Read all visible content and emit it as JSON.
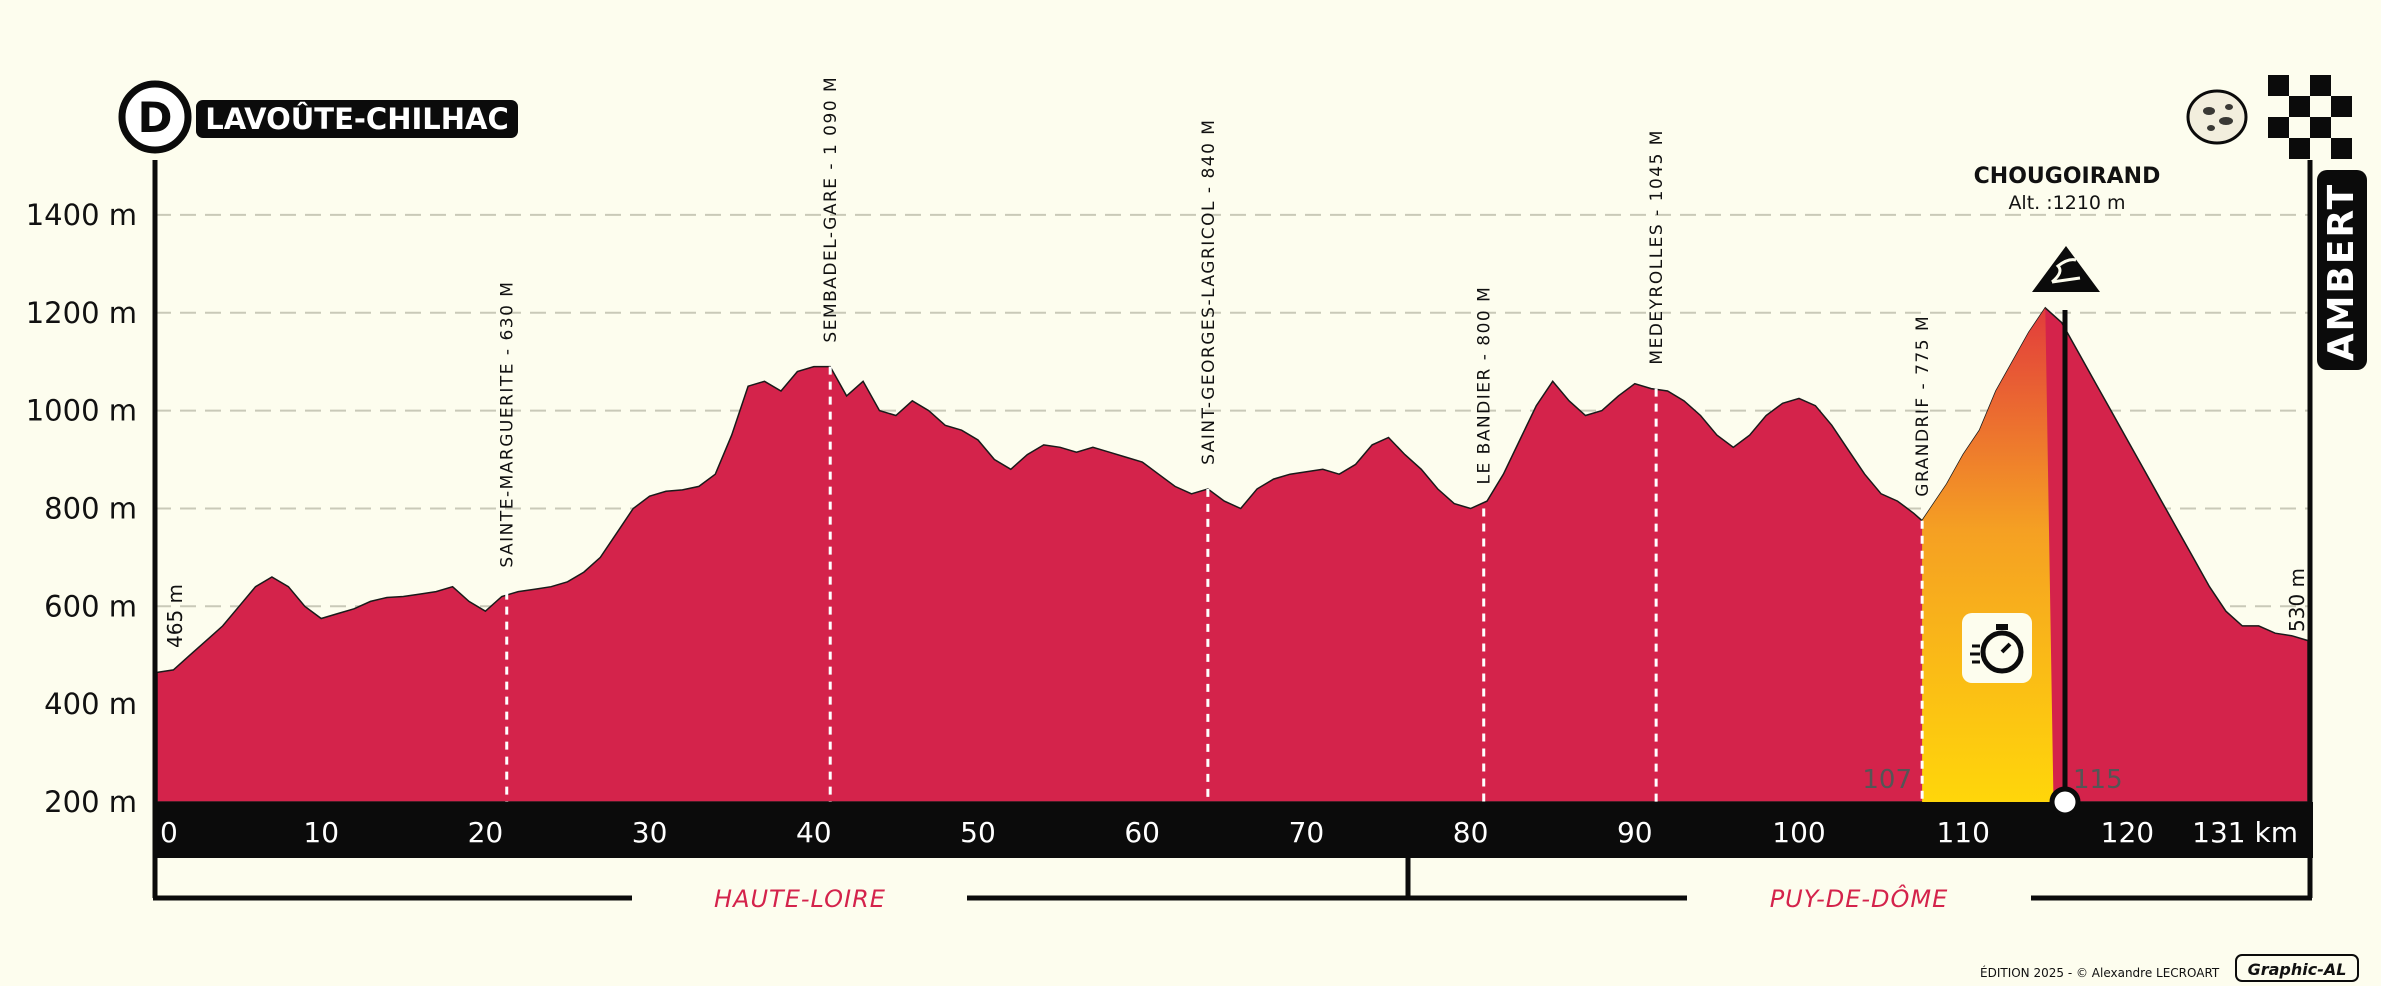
{
  "chart_data": {
    "type": "area",
    "start": {
      "marker": "D",
      "name": "LAVOÛTE-CHILHAC"
    },
    "finish": {
      "name": "AMBERT"
    },
    "ylim": [
      200,
      1500
    ],
    "xlim": [
      0,
      131
    ],
    "y_ticks": [
      {
        "v": 200,
        "label": "200 m"
      },
      {
        "v": 400,
        "label": "400 m"
      },
      {
        "v": 600,
        "label": "600 m"
      },
      {
        "v": 800,
        "label": "800 m"
      },
      {
        "v": 1000,
        "label": "1000 m"
      },
      {
        "v": 1200,
        "label": "1200 m"
      },
      {
        "v": 1400,
        "label": "1400 m"
      }
    ],
    "x_ticks": [
      {
        "v": 0,
        "label": "0"
      },
      {
        "v": 10,
        "label": "10"
      },
      {
        "v": 20,
        "label": "20"
      },
      {
        "v": 30,
        "label": "30"
      },
      {
        "v": 40,
        "label": "40"
      },
      {
        "v": 50,
        "label": "50"
      },
      {
        "v": 60,
        "label": "60"
      },
      {
        "v": 70,
        "label": "70"
      },
      {
        "v": 80,
        "label": "80"
      },
      {
        "v": 90,
        "label": "90"
      },
      {
        "v": 100,
        "label": "100"
      },
      {
        "v": 110,
        "label": "110"
      },
      {
        "v": 120,
        "label": "120"
      },
      {
        "v": 131,
        "label": "131 km"
      }
    ],
    "start_alt_label": "465 m",
    "end_alt_label": "530 m",
    "profile": [
      [
        0,
        465
      ],
      [
        1,
        470
      ],
      [
        2,
        500
      ],
      [
        3,
        530
      ],
      [
        4,
        560
      ],
      [
        5,
        600
      ],
      [
        6,
        640
      ],
      [
        7,
        660
      ],
      [
        8,
        640
      ],
      [
        9,
        600
      ],
      [
        10,
        575
      ],
      [
        11,
        585
      ],
      [
        12,
        595
      ],
      [
        13,
        610
      ],
      [
        14,
        618
      ],
      [
        15,
        620
      ],
      [
        16,
        625
      ],
      [
        17,
        630
      ],
      [
        18,
        640
      ],
      [
        19,
        610
      ],
      [
        20,
        590
      ],
      [
        21,
        620
      ],
      [
        22,
        630
      ],
      [
        23,
        635
      ],
      [
        24,
        640
      ],
      [
        25,
        650
      ],
      [
        26,
        670
      ],
      [
        27,
        700
      ],
      [
        28,
        750
      ],
      [
        29,
        800
      ],
      [
        30,
        825
      ],
      [
        31,
        835
      ],
      [
        32,
        838
      ],
      [
        33,
        845
      ],
      [
        34,
        870
      ],
      [
        35,
        950
      ],
      [
        36,
        1050
      ],
      [
        37,
        1060
      ],
      [
        38,
        1040
      ],
      [
        39,
        1080
      ],
      [
        40,
        1090
      ],
      [
        41,
        1090
      ],
      [
        42,
        1030
      ],
      [
        43,
        1060
      ],
      [
        44,
        1000
      ],
      [
        45,
        990
      ],
      [
        46,
        1020
      ],
      [
        47,
        1000
      ],
      [
        48,
        970
      ],
      [
        49,
        960
      ],
      [
        50,
        940
      ],
      [
        51,
        900
      ],
      [
        52,
        880
      ],
      [
        53,
        910
      ],
      [
        54,
        930
      ],
      [
        55,
        925
      ],
      [
        56,
        915
      ],
      [
        57,
        925
      ],
      [
        58,
        915
      ],
      [
        59,
        905
      ],
      [
        60,
        895
      ],
      [
        61,
        870
      ],
      [
        62,
        845
      ],
      [
        63,
        830
      ],
      [
        64,
        840
      ],
      [
        65,
        815
      ],
      [
        66,
        800
      ],
      [
        67,
        840
      ],
      [
        68,
        860
      ],
      [
        69,
        870
      ],
      [
        70,
        875
      ],
      [
        71,
        880
      ],
      [
        72,
        870
      ],
      [
        73,
        890
      ],
      [
        74,
        930
      ],
      [
        75,
        945
      ],
      [
        76,
        910
      ],
      [
        77,
        880
      ],
      [
        78,
        840
      ],
      [
        79,
        810
      ],
      [
        80,
        800
      ],
      [
        81,
        815
      ],
      [
        82,
        870
      ],
      [
        83,
        940
      ],
      [
        84,
        1010
      ],
      [
        85,
        1060
      ],
      [
        86,
        1020
      ],
      [
        87,
        990
      ],
      [
        88,
        1000
      ],
      [
        89,
        1030
      ],
      [
        90,
        1055
      ],
      [
        91,
        1045
      ],
      [
        92,
        1040
      ],
      [
        93,
        1020
      ],
      [
        94,
        990
      ],
      [
        95,
        950
      ],
      [
        96,
        925
      ],
      [
        97,
        950
      ],
      [
        98,
        990
      ],
      [
        99,
        1015
      ],
      [
        100,
        1025
      ],
      [
        101,
        1010
      ],
      [
        102,
        970
      ],
      [
        103,
        920
      ],
      [
        104,
        870
      ],
      [
        105,
        830
      ],
      [
        106,
        815
      ],
      [
        107,
        790
      ],
      [
        107.5,
        775
      ],
      [
        108,
        800
      ],
      [
        109,
        850
      ],
      [
        110,
        910
      ],
      [
        111,
        960
      ],
      [
        112,
        1040
      ],
      [
        113,
        1100
      ],
      [
        114,
        1160
      ],
      [
        115,
        1210
      ],
      [
        116,
        1180
      ],
      [
        117,
        1120
      ],
      [
        118,
        1060
      ],
      [
        119,
        1000
      ],
      [
        120,
        940
      ],
      [
        121,
        880
      ],
      [
        122,
        820
      ],
      [
        123,
        760
      ],
      [
        124,
        700
      ],
      [
        125,
        640
      ],
      [
        126,
        590
      ],
      [
        127,
        560
      ],
      [
        128,
        560
      ],
      [
        129,
        545
      ],
      [
        130,
        540
      ],
      [
        131,
        530
      ]
    ],
    "waypoints": [
      {
        "km": 21.3,
        "alt": 630,
        "label": "SAINTE-MARGUERITE - 630 M"
      },
      {
        "km": 41,
        "alt": 1090,
        "label": "SEMBADEL-GARE - 1 090 M"
      },
      {
        "km": 64,
        "alt": 840,
        "label": "SAINT-GEORGES-LAGRICOL - 840 M"
      },
      {
        "km": 80.8,
        "alt": 800,
        "label": "LE BANDIER - 800 M"
      },
      {
        "km": 91.3,
        "alt": 1045,
        "label": "MEDEYROLLES - 1045 M"
      },
      {
        "km": 107.5,
        "alt": 775,
        "label": "GRANDRIF - 775 M"
      }
    ],
    "climb": {
      "start_km": 107.5,
      "end_km": 115.5,
      "start_label": "107",
      "end_label": "115",
      "name": "CHOUGOIRAND",
      "altitude": "Alt. :1210 m",
      "timed_segment_icon": "stopwatch-icon"
    },
    "departments": [
      {
        "name": "HAUTE-LOIRE",
        "from_km": 0,
        "to_km": 76
      },
      {
        "name": "PUY-DE-DÔME",
        "from_km": 76,
        "to_km": 131
      }
    ],
    "grid": true
  },
  "footer": {
    "credit": "ÉDITION 2025 - © Alexandre LECROART",
    "brand": "Graphic-AL"
  },
  "colors": {
    "profile": "#d4234b",
    "background": "#fdfdee",
    "axis_band": "#0b0b0b",
    "climb_top": "#e23c3c",
    "climb_mid": "#f5a023",
    "climb_bottom": "#ffd60a",
    "grid": "#c9c9b8"
  },
  "icons": {
    "start": "start-d-icon",
    "finish": "checkered-flag-icon",
    "cheese": "fourme-cheese-icon",
    "mountain": "mountain-pass-icon"
  }
}
